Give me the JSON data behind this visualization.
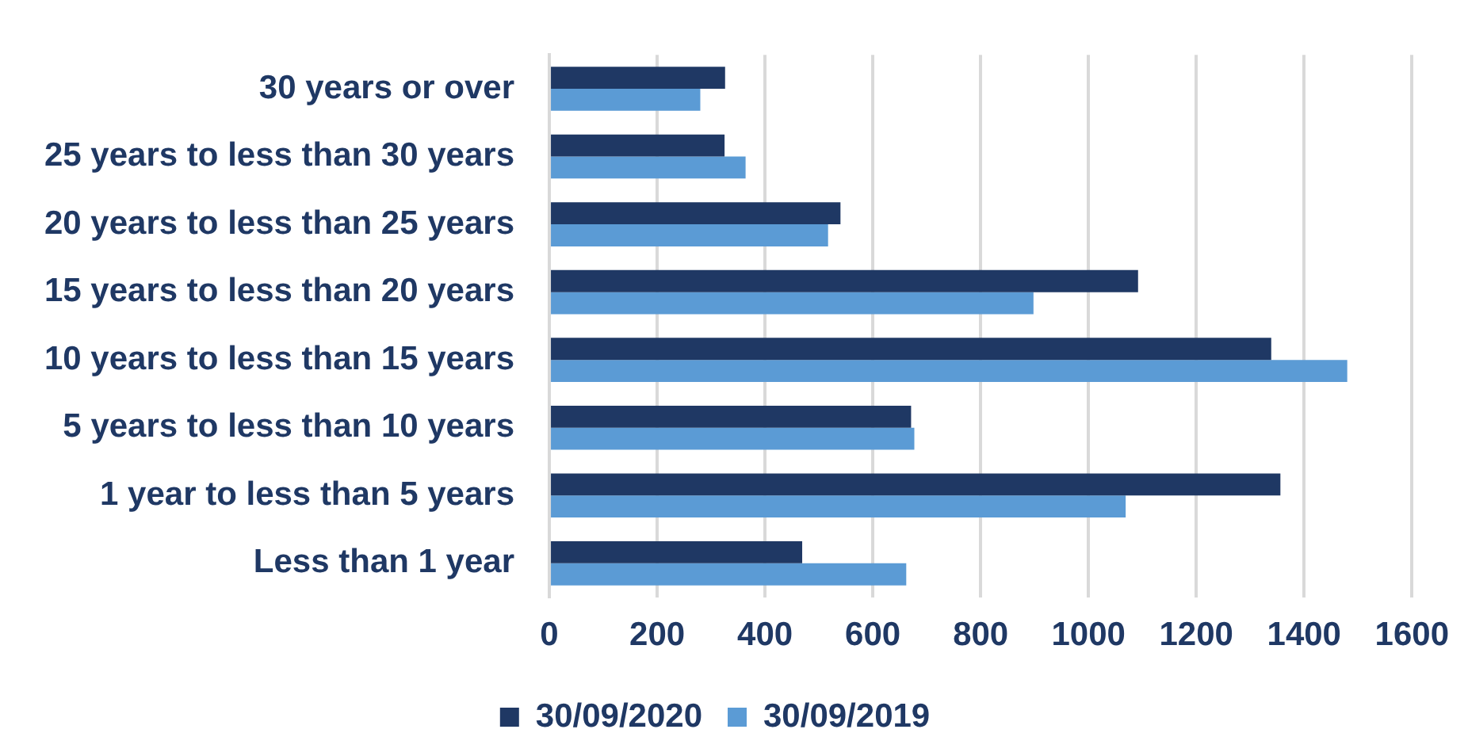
{
  "chart_data": {
    "type": "bar",
    "orientation": "horizontal",
    "categories": [
      "30 years or over",
      "25 years to less than 30 years",
      "20 years to less than 25 years",
      "15 years to less than 20 years",
      "10 years to less than 15 years",
      "5 years to less than 10 years",
      "1 year to less than 5 years",
      "Less than 1 year"
    ],
    "series": [
      {
        "name": "30/09/2020",
        "color": "#1f3864",
        "values": [
          326,
          325,
          540,
          1092,
          1339,
          671,
          1356,
          469
        ]
      },
      {
        "name": "30/09/2019",
        "color": "#5b9bd5",
        "values": [
          280,
          364,
          517,
          898,
          1480,
          677,
          1069,
          662
        ]
      }
    ],
    "xlim": [
      0,
      1600
    ],
    "xticks": [
      0,
      200,
      400,
      600,
      800,
      1000,
      1200,
      1400,
      1600
    ],
    "grid": "x",
    "legend": "bottom"
  }
}
